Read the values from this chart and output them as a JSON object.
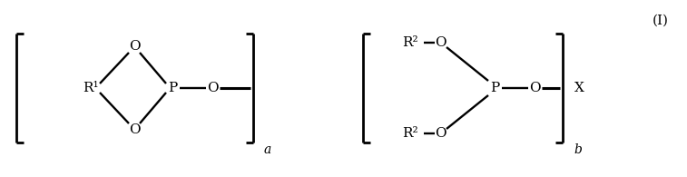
{
  "fig_width": 7.57,
  "fig_height": 1.95,
  "dpi": 100,
  "bg_color": "#ffffff",
  "struct1": {
    "R1_label": "R¹",
    "O_top_label": "O",
    "O_bot_label": "O",
    "P_label": "P",
    "O_right_label": "O"
  },
  "struct2": {
    "R2_top_label": "R²",
    "O_top_label": "O",
    "R2_bot_label": "R²",
    "O_bot_label": "O",
    "P_label": "P",
    "O_right_label": "O",
    "X_label": "X"
  },
  "label_I": "(I)",
  "label_a": "a",
  "label_b": "b",
  "fontsize": 11,
  "fontsize_sub": 10
}
